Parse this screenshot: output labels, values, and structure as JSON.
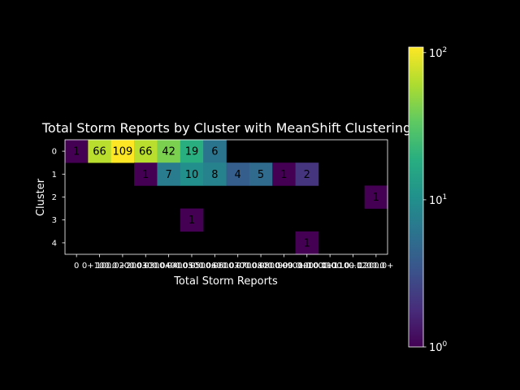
{
  "chart_data": {
    "type": "heatmap",
    "title": "Total Storm Reports by Cluster with MeanShift Clustering",
    "xlabel": "Total Storm Reports",
    "ylabel": "Cluster",
    "x_tick_labels": [
      "0",
      "0+100.0",
      "100.0+200.0",
      "200.0+300.0",
      "300.0+400.0",
      "400.0+500.0",
      "500.0+600.0",
      "600.0+700.0",
      "700.0+800.0",
      "800.0+900.0",
      "900.0+1000.0",
      "1000.0+1100.0",
      "1100.0+1200.0",
      "1200.0+"
    ],
    "y_tick_labels": [
      "0",
      "1",
      "2",
      "3",
      "4"
    ],
    "values": [
      [
        1,
        66,
        109,
        66,
        42,
        19,
        6,
        null,
        null,
        null,
        null,
        null,
        null,
        null
      ],
      [
        null,
        null,
        null,
        1,
        7,
        10,
        8,
        4,
        5,
        1,
        2,
        null,
        null,
        null
      ],
      [
        null,
        null,
        null,
        null,
        null,
        null,
        null,
        null,
        null,
        null,
        null,
        null,
        null,
        1
      ],
      [
        null,
        null,
        null,
        null,
        null,
        1,
        null,
        null,
        null,
        null,
        null,
        null,
        null,
        null
      ],
      [
        null,
        null,
        null,
        null,
        null,
        null,
        null,
        null,
        null,
        null,
        1,
        null,
        null,
        null
      ]
    ],
    "colorbar": {
      "scale": "log",
      "range": [
        1,
        109
      ],
      "colormap": "viridis",
      "tick_labels": [
        {
          "value": 1,
          "base": "10",
          "exp": "0"
        },
        {
          "value": 10,
          "base": "10",
          "exp": "1"
        },
        {
          "value": 100,
          "base": "10",
          "exp": "2"
        }
      ]
    },
    "colors": {
      "background": "#000000",
      "foreground": "#ffffff",
      "cell_text": "#000000"
    }
  }
}
